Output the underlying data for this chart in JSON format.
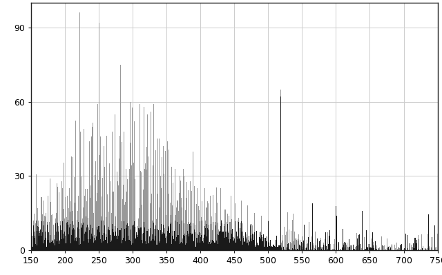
{
  "xlim": [
    150,
    750
  ],
  "ylim": [
    0,
    100
  ],
  "xticks": [
    150,
    200,
    250,
    300,
    350,
    400,
    450,
    500,
    550,
    600,
    650,
    700,
    750
  ],
  "yticks": [
    0,
    30,
    60,
    90
  ],
  "background_color": "#ffffff",
  "grid_color": "#cccccc",
  "bar_color_dark": "#1a1a1a",
  "bar_color_light": "#999999",
  "seed_light": 42,
  "seed_dark": 99
}
